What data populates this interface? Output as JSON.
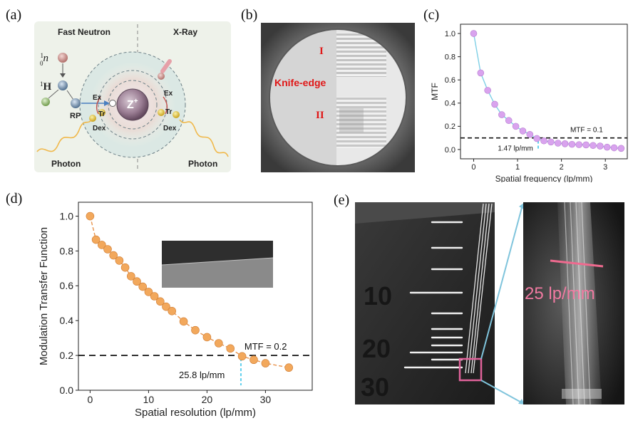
{
  "panels": {
    "a": {
      "label": "(a)",
      "left_title": "Fast Neutron",
      "right_title": "X-Ray",
      "neutron": "1 0n",
      "neutron_sup": "1",
      "neutron_sub": "0",
      "neutron_sym": "n",
      "hydrogen_sup": "1",
      "hydrogen_sym": "H",
      "rp": "RP",
      "ex_left": "Ex",
      "tr_left": "Tr",
      "dex_left": "Dex",
      "ex_right": "Ex",
      "tr_right": "Tr",
      "dex_right": "Dex",
      "nucleus": "Z",
      "nucleus_sup": "+",
      "photon_left": "Photon",
      "photon_right": "Photon"
    },
    "b": {
      "label": "(b)",
      "knife_edge": "Knife-edge",
      "region_1": "I",
      "region_2": "II"
    },
    "e": {
      "label": "(e)",
      "ruler_labels": [
        "10",
        "20",
        "30"
      ],
      "resolution_label": "25 lp/mm"
    }
  },
  "chart_data": [
    {
      "panel": "(c)",
      "type": "scatter",
      "xlabel": "Spatial frequency (lp/mm)",
      "ylabel": "MTF",
      "xlim": [
        -0.3,
        3.5
      ],
      "ylim": [
        -0.08,
        1.08
      ],
      "xticks": [
        "0",
        "1",
        "2",
        "3"
      ],
      "yticks": [
        "0.0",
        "0.2",
        "0.4",
        "0.6",
        "0.8",
        "1.0"
      ],
      "marker_color": "#d9a3ee",
      "curve_color": "#7fd0e6",
      "threshold": {
        "y": 0.1,
        "label": "MTF = 0.1"
      },
      "crossing": {
        "x": 1.47,
        "label": "1.47 lp/mm"
      },
      "x": [
        0,
        0.16,
        0.32,
        0.48,
        0.64,
        0.8,
        0.96,
        1.12,
        1.28,
        1.44,
        1.6,
        1.76,
        1.92,
        2.08,
        2.24,
        2.4,
        2.56,
        2.72,
        2.88,
        3.04,
        3.2,
        3.36
      ],
      "y": [
        1.0,
        0.66,
        0.51,
        0.39,
        0.3,
        0.25,
        0.2,
        0.16,
        0.13,
        0.095,
        0.075,
        0.065,
        0.055,
        0.05,
        0.045,
        0.042,
        0.04,
        0.035,
        0.03,
        0.02,
        0.015,
        0.01
      ]
    },
    {
      "panel": "(d)",
      "type": "line",
      "xlabel": "Spatial resolution (lp/mm)",
      "ylabel": "Modulation Transfer Function",
      "xlim": [
        -2,
        38
      ],
      "ylim": [
        0,
        1.08
      ],
      "xticks": [
        "0",
        "10",
        "20",
        "30"
      ],
      "yticks": [
        "0.0",
        "0.2",
        "0.4",
        "0.6",
        "0.8",
        "1.0"
      ],
      "marker_color": "#f2a85c",
      "threshold": {
        "y": 0.2,
        "label": "MTF = 0.2"
      },
      "crossing": {
        "x": 25.8,
        "label": "25.8 lp/mm"
      },
      "x": [
        0,
        1,
        2,
        3,
        4,
        5,
        6,
        7,
        8,
        9,
        10,
        11,
        12,
        13,
        14,
        16,
        18,
        20,
        22,
        24,
        26,
        28,
        30,
        34
      ],
      "y": [
        1.0,
        0.865,
        0.835,
        0.81,
        0.775,
        0.745,
        0.705,
        0.655,
        0.625,
        0.595,
        0.565,
        0.54,
        0.51,
        0.48,
        0.455,
        0.395,
        0.345,
        0.305,
        0.27,
        0.24,
        0.195,
        0.175,
        0.155,
        0.13
      ]
    }
  ]
}
